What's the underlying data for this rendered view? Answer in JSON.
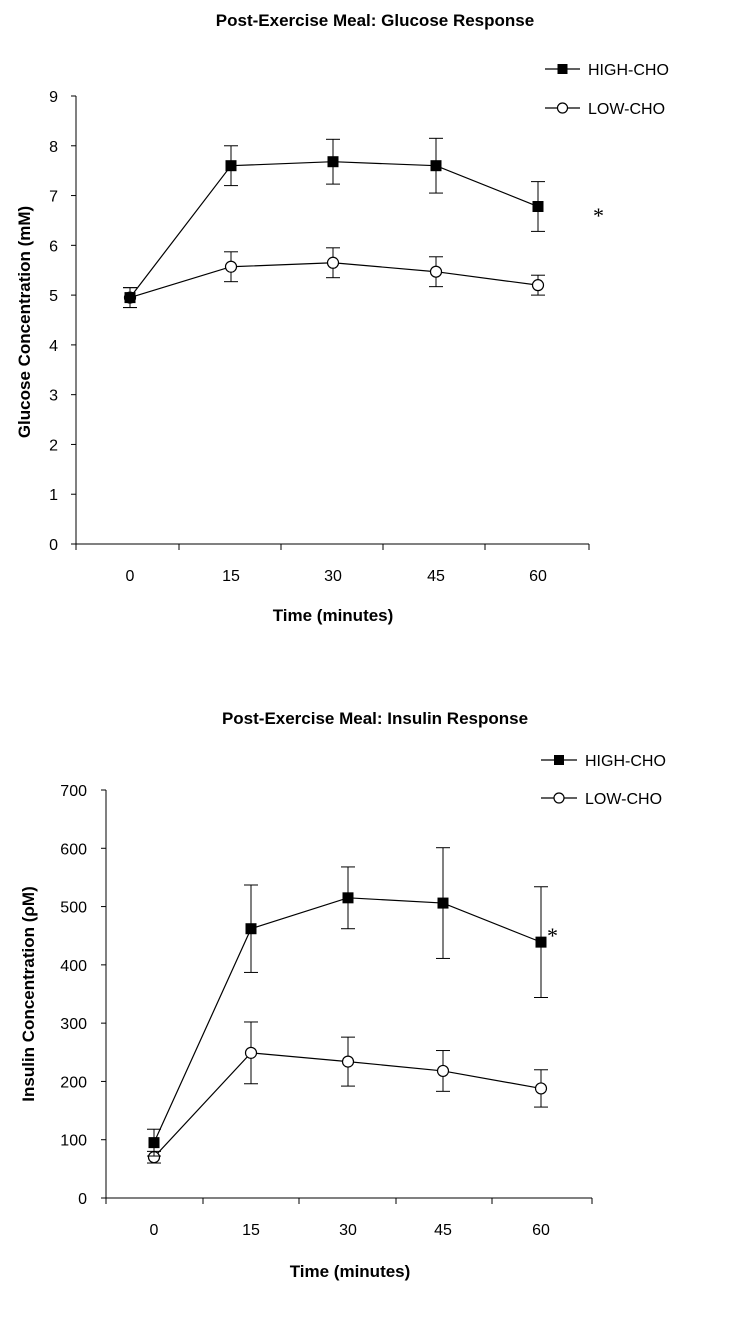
{
  "chart_data": [
    {
      "type": "line",
      "title": "Post-Exercise Meal: Glucose Response",
      "xlabel": "Time (minutes)",
      "ylabel": "Glucose Concentration (mM)",
      "categories": [
        "0",
        "15",
        "30",
        "45",
        "60"
      ],
      "yticks": [
        "0",
        "1",
        "2",
        "3",
        "4",
        "5",
        "6",
        "7",
        "8",
        "9"
      ],
      "ylim": [
        0,
        9
      ],
      "grid": false,
      "legend_position": "top-right",
      "annotation": "*",
      "series": [
        {
          "name": "HIGH-CHO",
          "marker": "filled-square",
          "values": [
            4.95,
            7.6,
            7.68,
            7.6,
            6.78
          ],
          "errors": [
            0.2,
            0.4,
            0.45,
            0.55,
            0.5
          ]
        },
        {
          "name": "LOW-CHO",
          "marker": "open-circle",
          "values": [
            4.95,
            5.57,
            5.65,
            5.47,
            5.2
          ],
          "errors": [
            0.2,
            0.3,
            0.3,
            0.3,
            0.2
          ]
        }
      ]
    },
    {
      "type": "line",
      "title": "Post-Exercise Meal: Insulin Response",
      "xlabel": "Time (minutes)",
      "ylabel": "Insulin Concentration (ρM)",
      "categories": [
        "0",
        "15",
        "30",
        "45",
        "60"
      ],
      "yticks": [
        "0",
        "100",
        "200",
        "300",
        "400",
        "500",
        "600",
        "700"
      ],
      "ylim": [
        0,
        700
      ],
      "grid": false,
      "legend_position": "top-right",
      "annotation": "*",
      "series": [
        {
          "name": "HIGH-CHO",
          "marker": "filled-square",
          "values": [
            95,
            462,
            515,
            506,
            439
          ],
          "errors": [
            23,
            75,
            53,
            95,
            95
          ]
        },
        {
          "name": "LOW-CHO",
          "marker": "open-circle",
          "values": [
            70,
            249,
            234,
            218,
            188
          ],
          "errors": [
            10,
            53,
            42,
            35,
            32
          ]
        }
      ]
    }
  ]
}
